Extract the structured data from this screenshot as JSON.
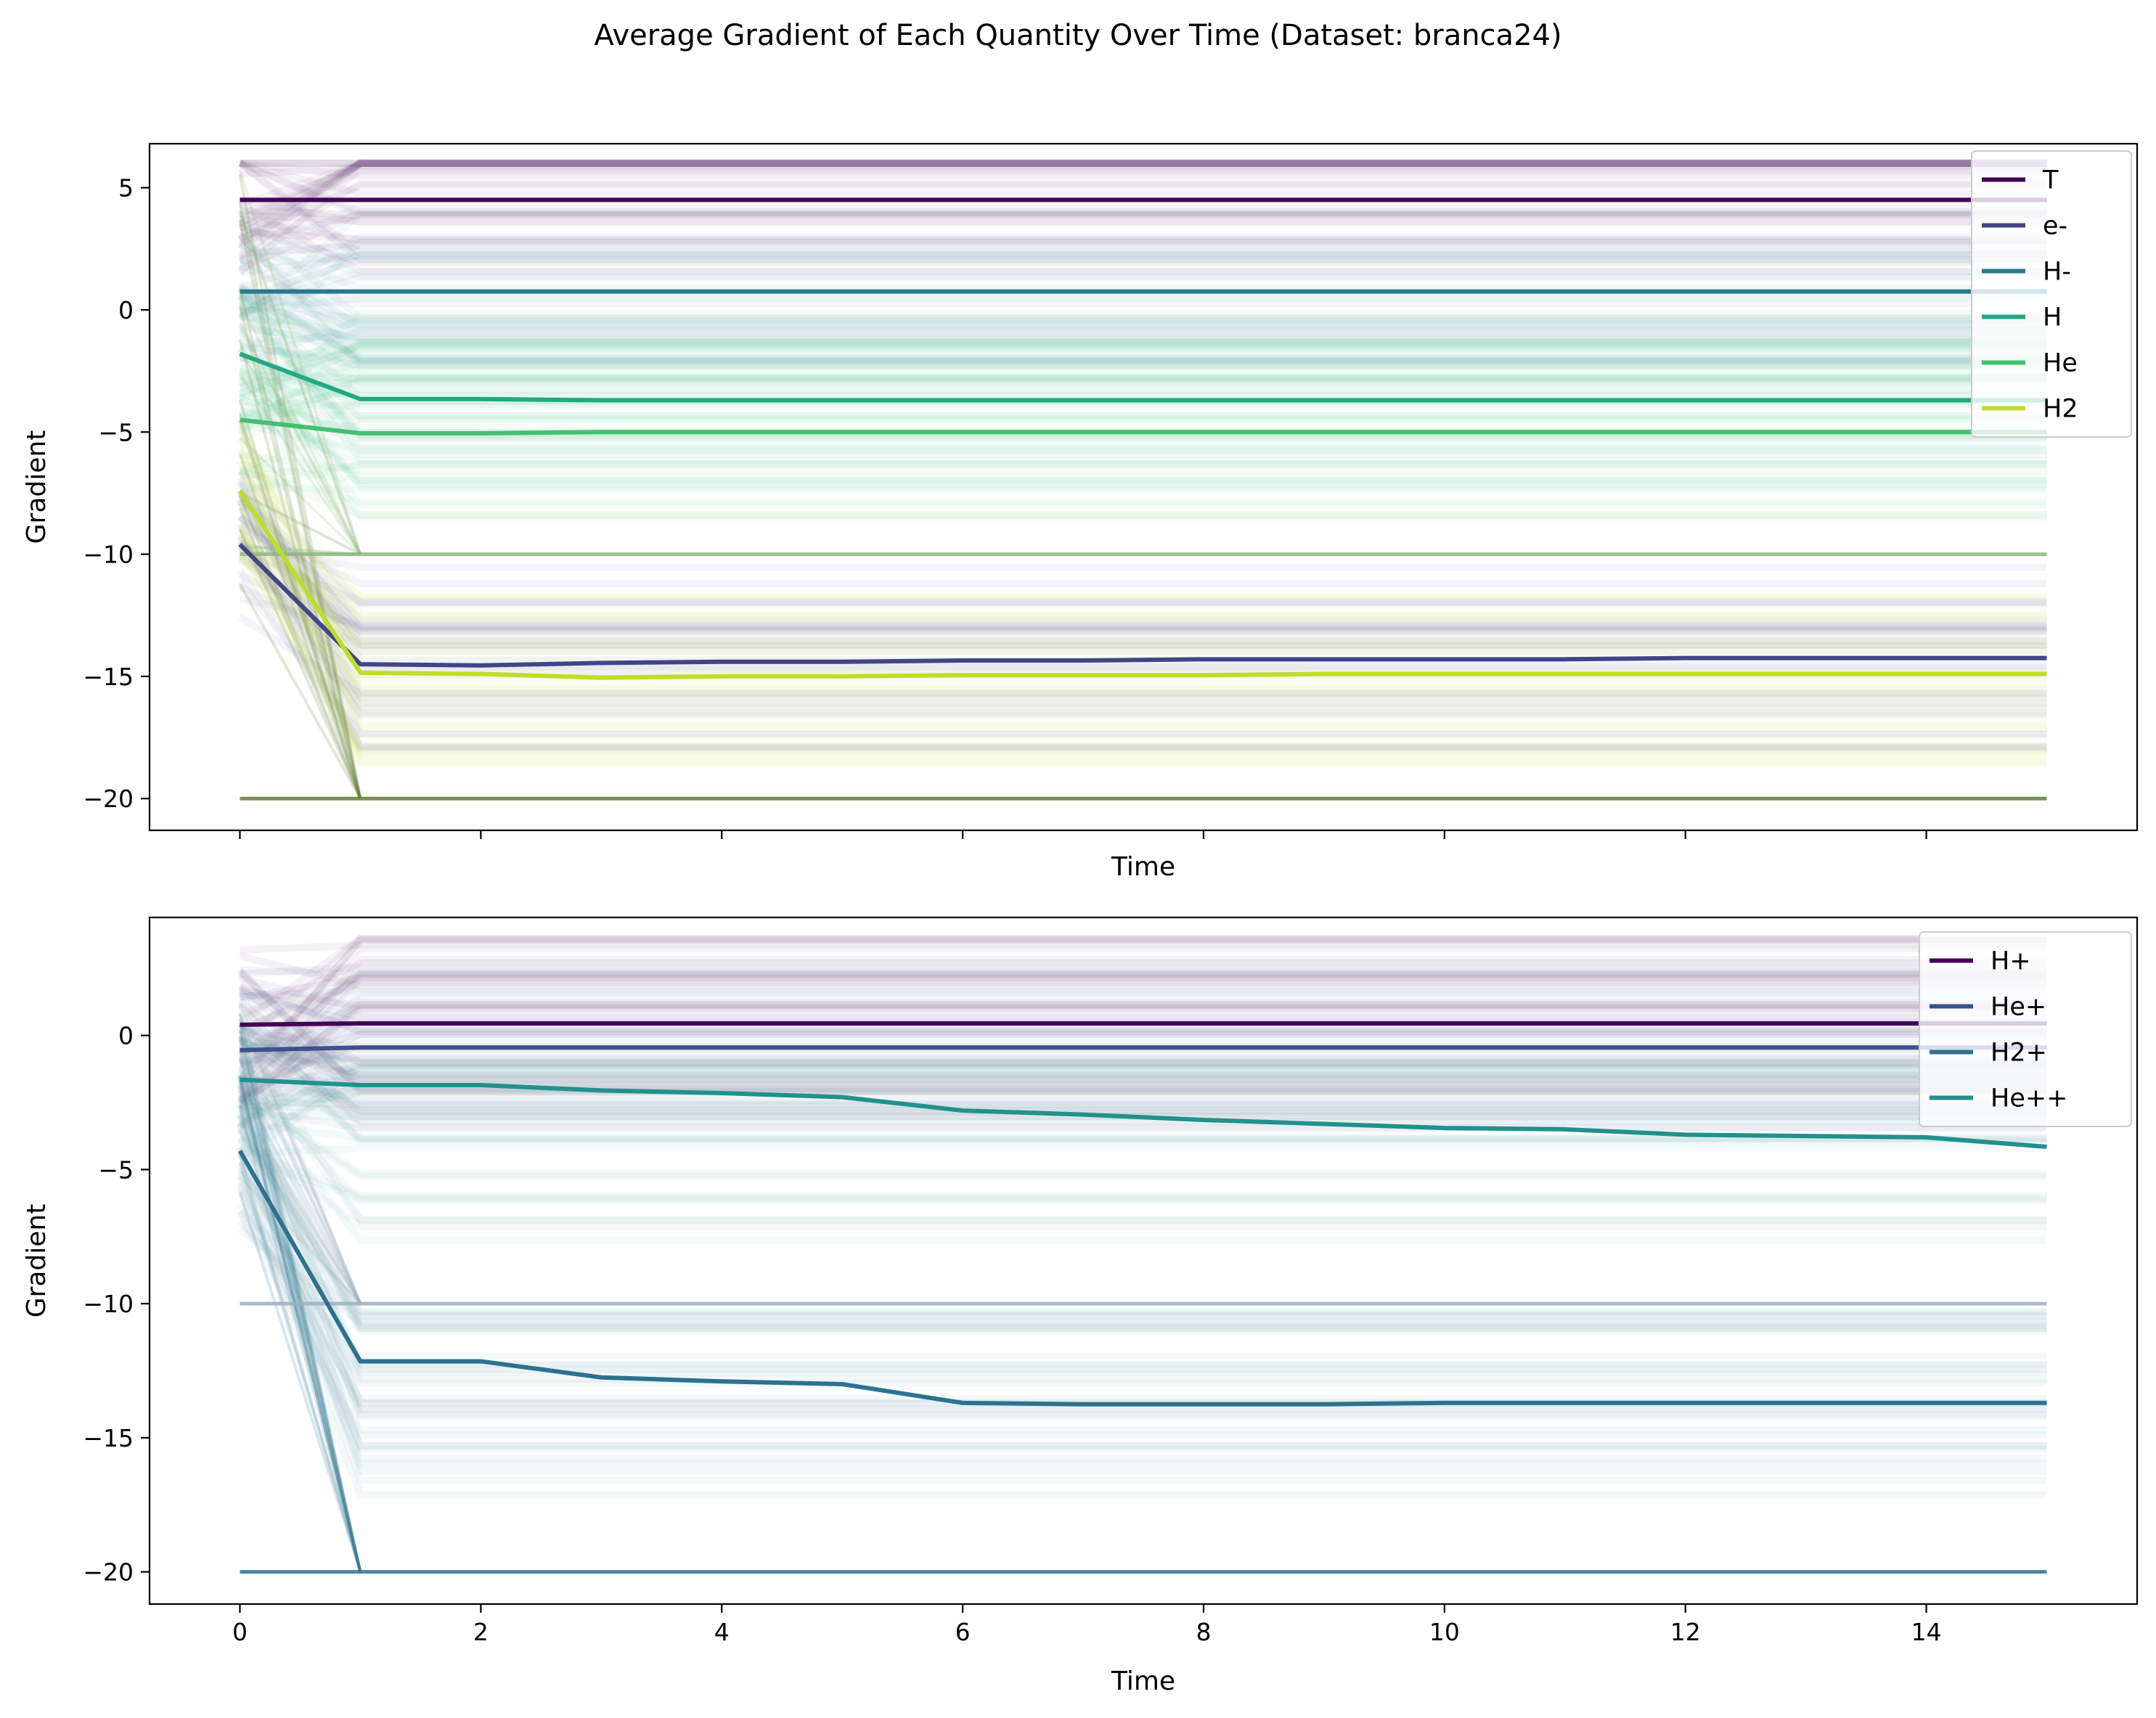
{
  "figure_title": "Average Gradient of Each Quantity Over Time (Dataset: branca24)",
  "chart_data": [
    {
      "type": "line",
      "title": "",
      "xlabel": "Time",
      "ylabel": "Gradient",
      "xlim": [
        -0.75,
        15.75
      ],
      "ylim": [
        -21.3,
        6.8
      ],
      "xticks": [
        0,
        2,
        4,
        6,
        8,
        10,
        12,
        14
      ],
      "xtick_labels_visible": false,
      "yticks": [
        5,
        0,
        -5,
        -10,
        -15,
        -20
      ],
      "ytick_labels": [
        "5",
        "0",
        "−5",
        "−10",
        "−15",
        "−20"
      ],
      "grid": false,
      "legend_position": "top-right",
      "background_note": "hundreds of faint semi-transparent per-sample trajectories drawn behind the mean lines",
      "series": [
        {
          "name": "T",
          "color": "#440154",
          "x": [
            0,
            1,
            2,
            3,
            4,
            5,
            6,
            7,
            8,
            9,
            10,
            11,
            12,
            13,
            14,
            15
          ],
          "values": [
            4.5,
            4.5,
            4.5,
            4.5,
            4.5,
            4.5,
            4.5,
            4.5,
            4.5,
            4.5,
            4.5,
            4.5,
            4.5,
            4.5,
            4.5,
            4.5
          ]
        },
        {
          "name": "e-",
          "color": "#414487",
          "x": [
            0,
            1,
            2,
            3,
            4,
            5,
            6,
            7,
            8,
            9,
            10,
            11,
            12,
            13,
            14,
            15
          ],
          "values": [
            -9.6,
            -14.5,
            -14.55,
            -14.45,
            -14.4,
            -14.4,
            -14.35,
            -14.35,
            -14.3,
            -14.3,
            -14.3,
            -14.3,
            -14.25,
            -14.25,
            -14.25,
            -14.25
          ]
        },
        {
          "name": "H-",
          "color": "#2a788e",
          "x": [
            0,
            1,
            2,
            3,
            4,
            5,
            6,
            7,
            8,
            9,
            10,
            11,
            12,
            13,
            14,
            15
          ],
          "values": [
            0.75,
            0.75,
            0.75,
            0.75,
            0.75,
            0.75,
            0.75,
            0.75,
            0.75,
            0.75,
            0.75,
            0.75,
            0.75,
            0.75,
            0.75,
            0.75
          ]
        },
        {
          "name": "H",
          "color": "#22a884",
          "x": [
            0,
            1,
            2,
            3,
            4,
            5,
            6,
            7,
            8,
            9,
            10,
            11,
            12,
            13,
            14,
            15
          ],
          "values": [
            -1.8,
            -3.65,
            -3.65,
            -3.7,
            -3.7,
            -3.7,
            -3.7,
            -3.7,
            -3.7,
            -3.7,
            -3.7,
            -3.7,
            -3.7,
            -3.7,
            -3.7,
            -3.7
          ]
        },
        {
          "name": "He",
          "color": "#44bf70",
          "x": [
            0,
            1,
            2,
            3,
            4,
            5,
            6,
            7,
            8,
            9,
            10,
            11,
            12,
            13,
            14,
            15
          ],
          "values": [
            -4.5,
            -5.05,
            -5.05,
            -5.0,
            -5.0,
            -5.0,
            -5.0,
            -5.0,
            -5.0,
            -5.0,
            -5.0,
            -5.0,
            -5.0,
            -5.0,
            -5.0,
            -5.0
          ]
        },
        {
          "name": "H2",
          "color": "#bddf26",
          "x": [
            0,
            1,
            2,
            3,
            4,
            5,
            6,
            7,
            8,
            9,
            10,
            11,
            12,
            13,
            14,
            15
          ],
          "values": [
            -7.4,
            -14.85,
            -14.9,
            -15.05,
            -15.0,
            -15.0,
            -14.95,
            -14.95,
            -14.95,
            -14.9,
            -14.9,
            -14.9,
            -14.9,
            -14.9,
            -14.9,
            -14.9
          ]
        }
      ],
      "floor_lines": [
        {
          "label": "",
          "color": "#5d7f34",
          "y": -20
        },
        {
          "label": "",
          "color": "#8cb87c",
          "y": -10
        }
      ]
    },
    {
      "type": "line",
      "title": "",
      "xlabel": "Time",
      "ylabel": "Gradient",
      "xlim": [
        -0.75,
        15.75
      ],
      "ylim": [
        -21.2,
        4.4
      ],
      "xticks": [
        0,
        2,
        4,
        6,
        8,
        10,
        12,
        14
      ],
      "xtick_labels": [
        "0",
        "2",
        "4",
        "6",
        "8",
        "10",
        "12",
        "14"
      ],
      "yticks": [
        0,
        -5,
        -10,
        -15,
        -20
      ],
      "ytick_labels": [
        "0",
        "−5",
        "−10",
        "−15",
        "−20"
      ],
      "grid": false,
      "legend_position": "top-right",
      "background_note": "hundreds of faint semi-transparent per-sample trajectories drawn behind the mean lines",
      "series": [
        {
          "name": "H+",
          "color": "#440154",
          "x": [
            0,
            1,
            2,
            3,
            4,
            5,
            6,
            7,
            8,
            9,
            10,
            11,
            12,
            13,
            14,
            15
          ],
          "values": [
            0.4,
            0.45,
            0.45,
            0.45,
            0.45,
            0.45,
            0.45,
            0.45,
            0.45,
            0.45,
            0.45,
            0.45,
            0.45,
            0.45,
            0.45,
            0.45
          ]
        },
        {
          "name": "He+",
          "color": "#3b528b",
          "x": [
            0,
            1,
            2,
            3,
            4,
            5,
            6,
            7,
            8,
            9,
            10,
            11,
            12,
            13,
            14,
            15
          ],
          "values": [
            -0.55,
            -0.45,
            -0.45,
            -0.45,
            -0.45,
            -0.45,
            -0.45,
            -0.45,
            -0.45,
            -0.45,
            -0.45,
            -0.45,
            -0.45,
            -0.45,
            -0.45,
            -0.45
          ]
        },
        {
          "name": "H2+",
          "color": "#2c728e",
          "x": [
            0,
            1,
            2,
            3,
            4,
            5,
            6,
            7,
            8,
            9,
            10,
            11,
            12,
            13,
            14,
            15
          ],
          "values": [
            -4.3,
            -12.15,
            -12.15,
            -12.75,
            -12.9,
            -13.0,
            -13.7,
            -13.75,
            -13.75,
            -13.75,
            -13.7,
            -13.7,
            -13.7,
            -13.7,
            -13.7,
            -13.7
          ]
        },
        {
          "name": "He++",
          "color": "#21918c",
          "x": [
            0,
            1,
            2,
            3,
            4,
            5,
            6,
            7,
            8,
            9,
            10,
            11,
            12,
            13,
            14,
            15
          ],
          "values": [
            -1.65,
            -1.85,
            -1.85,
            -2.05,
            -2.15,
            -2.3,
            -2.8,
            -2.95,
            -3.15,
            -3.3,
            -3.45,
            -3.5,
            -3.7,
            -3.75,
            -3.8,
            -4.15
          ]
        }
      ],
      "floor_lines": [
        {
          "label": "",
          "color": "#2c728e",
          "y": -20
        },
        {
          "label": "",
          "color": "#9ab0bc",
          "y": -10
        }
      ]
    }
  ]
}
